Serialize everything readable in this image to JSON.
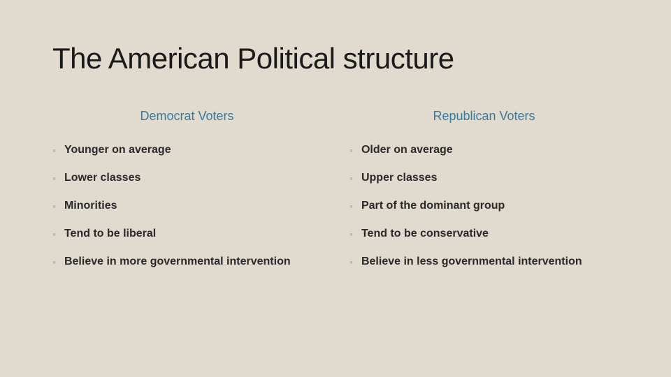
{
  "slide": {
    "title": "The American Political structure",
    "background_color": "#e0dacf",
    "title_color": "#1a1a1a",
    "title_fontsize": 42,
    "columns": [
      {
        "header": "Democrat Voters",
        "header_color": "#3d7a99",
        "items": [
          "Younger on average",
          "Lower classes",
          "Minorities",
          "Tend to be liberal",
          "Believe in more governmental intervention"
        ]
      },
      {
        "header": "Republican Voters",
        "header_color": "#3d7a99",
        "items": [
          "Older on average",
          "Upper classes",
          "Part of the dominant group",
          "Tend to be conservative",
          "Believe in less governmental intervention"
        ]
      }
    ],
    "bullet_marker": "◦",
    "bullet_marker_color": "#8a8578",
    "item_color": "#2a2a2a",
    "item_fontsize": 16,
    "header_fontsize": 18
  }
}
